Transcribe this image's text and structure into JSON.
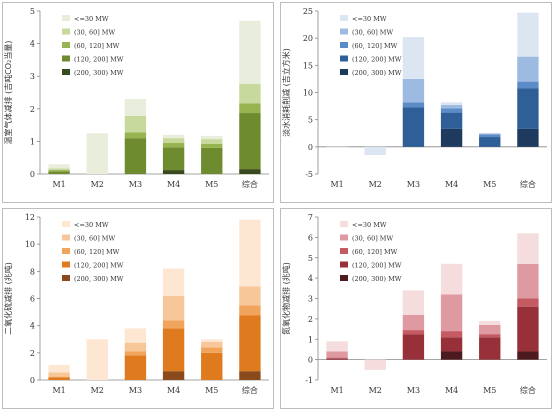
{
  "chart_data": [
    {
      "type": "bar",
      "stacked": true,
      "ylabel": "温室气体减排 (吉吨CO₂当量)",
      "ylim": [
        0,
        5
      ],
      "yticks": [
        0,
        1,
        2,
        3,
        4,
        5
      ],
      "categories": [
        "M1",
        "M2",
        "M3",
        "M4",
        "M5",
        "综合"
      ],
      "legend_position": "upper-left",
      "series": [
        {
          "name": "(200, 300) MW",
          "color": "#3a4a1f",
          "values": [
            0,
            0,
            0,
            0.12,
            0,
            0.15
          ]
        },
        {
          "name": "(120, 200] MW",
          "color": "#6e8b30",
          "values": [
            0.08,
            0,
            1.1,
            0.7,
            0.8,
            1.72
          ]
        },
        {
          "name": "(60, 120] MW",
          "color": "#98b450",
          "values": [
            0.04,
            0,
            0.18,
            0.13,
            0.12,
            0.3
          ]
        },
        {
          "name": "(30, 60] MW",
          "color": "#c7d99c",
          "values": [
            0.05,
            0,
            0.5,
            0.15,
            0.15,
            0.6
          ]
        },
        {
          "name": "<=30 MW",
          "color": "#e8eedb",
          "values": [
            0.13,
            1.25,
            0.52,
            0.1,
            0.1,
            1.93
          ]
        }
      ]
    },
    {
      "type": "bar",
      "stacked": true,
      "ylabel": "淡水消耗削减 (吉立方米)",
      "ylim": [
        -5,
        25
      ],
      "yticks": [
        -5,
        0,
        5,
        10,
        15,
        20,
        25
      ],
      "categories": [
        "M1",
        "M2",
        "M3",
        "M4",
        "M5",
        "综合"
      ],
      "legend_position": "upper-left",
      "series": [
        {
          "name": "(200, 300) MW",
          "color": "#1f3a5f",
          "values": [
            0,
            0,
            0,
            3.3,
            0,
            3.3
          ]
        },
        {
          "name": "(120, 200] MW",
          "color": "#2e5f97",
          "values": [
            0,
            0,
            7.3,
            3.0,
            1.8,
            7.5
          ]
        },
        {
          "name": "(60, 120] MW",
          "color": "#5b8cc8",
          "values": [
            0,
            0,
            0.9,
            0.8,
            0.5,
            1.2
          ]
        },
        {
          "name": "(30, 60] MW",
          "color": "#9dbbe0",
          "values": [
            0,
            0,
            4.3,
            0.6,
            0.15,
            4.6
          ]
        },
        {
          "name": "<=30 MW",
          "color": "#dce6f3",
          "values": [
            -0.1,
            -1.5,
            7.7,
            0.5,
            0.1,
            8.1
          ]
        }
      ]
    },
    {
      "type": "bar",
      "stacked": true,
      "ylabel": "二氧化硫减排 (兆吨)",
      "ylim": [
        0,
        12
      ],
      "yticks": [
        0,
        2,
        4,
        6,
        8,
        10,
        12
      ],
      "categories": [
        "M1",
        "M2",
        "M3",
        "M4",
        "M5",
        "综合"
      ],
      "legend_position": "upper-left",
      "series": [
        {
          "name": "(200, 300) MW",
          "color": "#8a4a1b",
          "values": [
            0,
            0,
            0,
            0.65,
            0,
            0.65
          ]
        },
        {
          "name": "(120, 200] MW",
          "color": "#e07a1f",
          "values": [
            0.2,
            0,
            1.8,
            3.15,
            2.0,
            4.1
          ]
        },
        {
          "name": "(60, 120] MW",
          "color": "#f1a45c",
          "values": [
            0.05,
            0,
            0.3,
            0.6,
            0.4,
            0.75
          ]
        },
        {
          "name": "(30, 60] MW",
          "color": "#f7c79a",
          "values": [
            0.3,
            0,
            0.65,
            1.8,
            0.4,
            1.4
          ]
        },
        {
          "name": "<=30 MW",
          "color": "#fde6d2",
          "values": [
            0.55,
            3.0,
            1.05,
            2.0,
            0.2,
            4.9
          ]
        }
      ]
    },
    {
      "type": "bar",
      "stacked": true,
      "ylabel": "氮氧化物减排 (兆吨)",
      "ylim": [
        -1,
        7
      ],
      "yticks": [
        -1,
        0,
        1,
        2,
        3,
        4,
        5,
        6,
        7
      ],
      "categories": [
        "M1",
        "M2",
        "M3",
        "M4",
        "M5",
        "综合"
      ],
      "legend_position": "upper-left",
      "series": [
        {
          "name": "(200, 300) MW",
          "color": "#4d1a1f",
          "values": [
            0,
            0,
            0,
            0.4,
            0,
            0.4
          ]
        },
        {
          "name": "(120, 200] MW",
          "color": "#983039",
          "values": [
            0.05,
            0,
            1.25,
            0.7,
            1.1,
            2.2
          ]
        },
        {
          "name": "(60, 120] MW",
          "color": "#c45a62",
          "values": [
            0.05,
            0,
            0.2,
            0.3,
            0.15,
            0.4
          ]
        },
        {
          "name": "(30, 60] MW",
          "color": "#de9aa0",
          "values": [
            0.3,
            0,
            0.75,
            1.8,
            0.45,
            1.7
          ]
        },
        {
          "name": "<=30 MW",
          "color": "#f5dcdd",
          "values": [
            0.5,
            -0.5,
            1.2,
            1.5,
            0.2,
            1.5
          ]
        }
      ]
    }
  ]
}
